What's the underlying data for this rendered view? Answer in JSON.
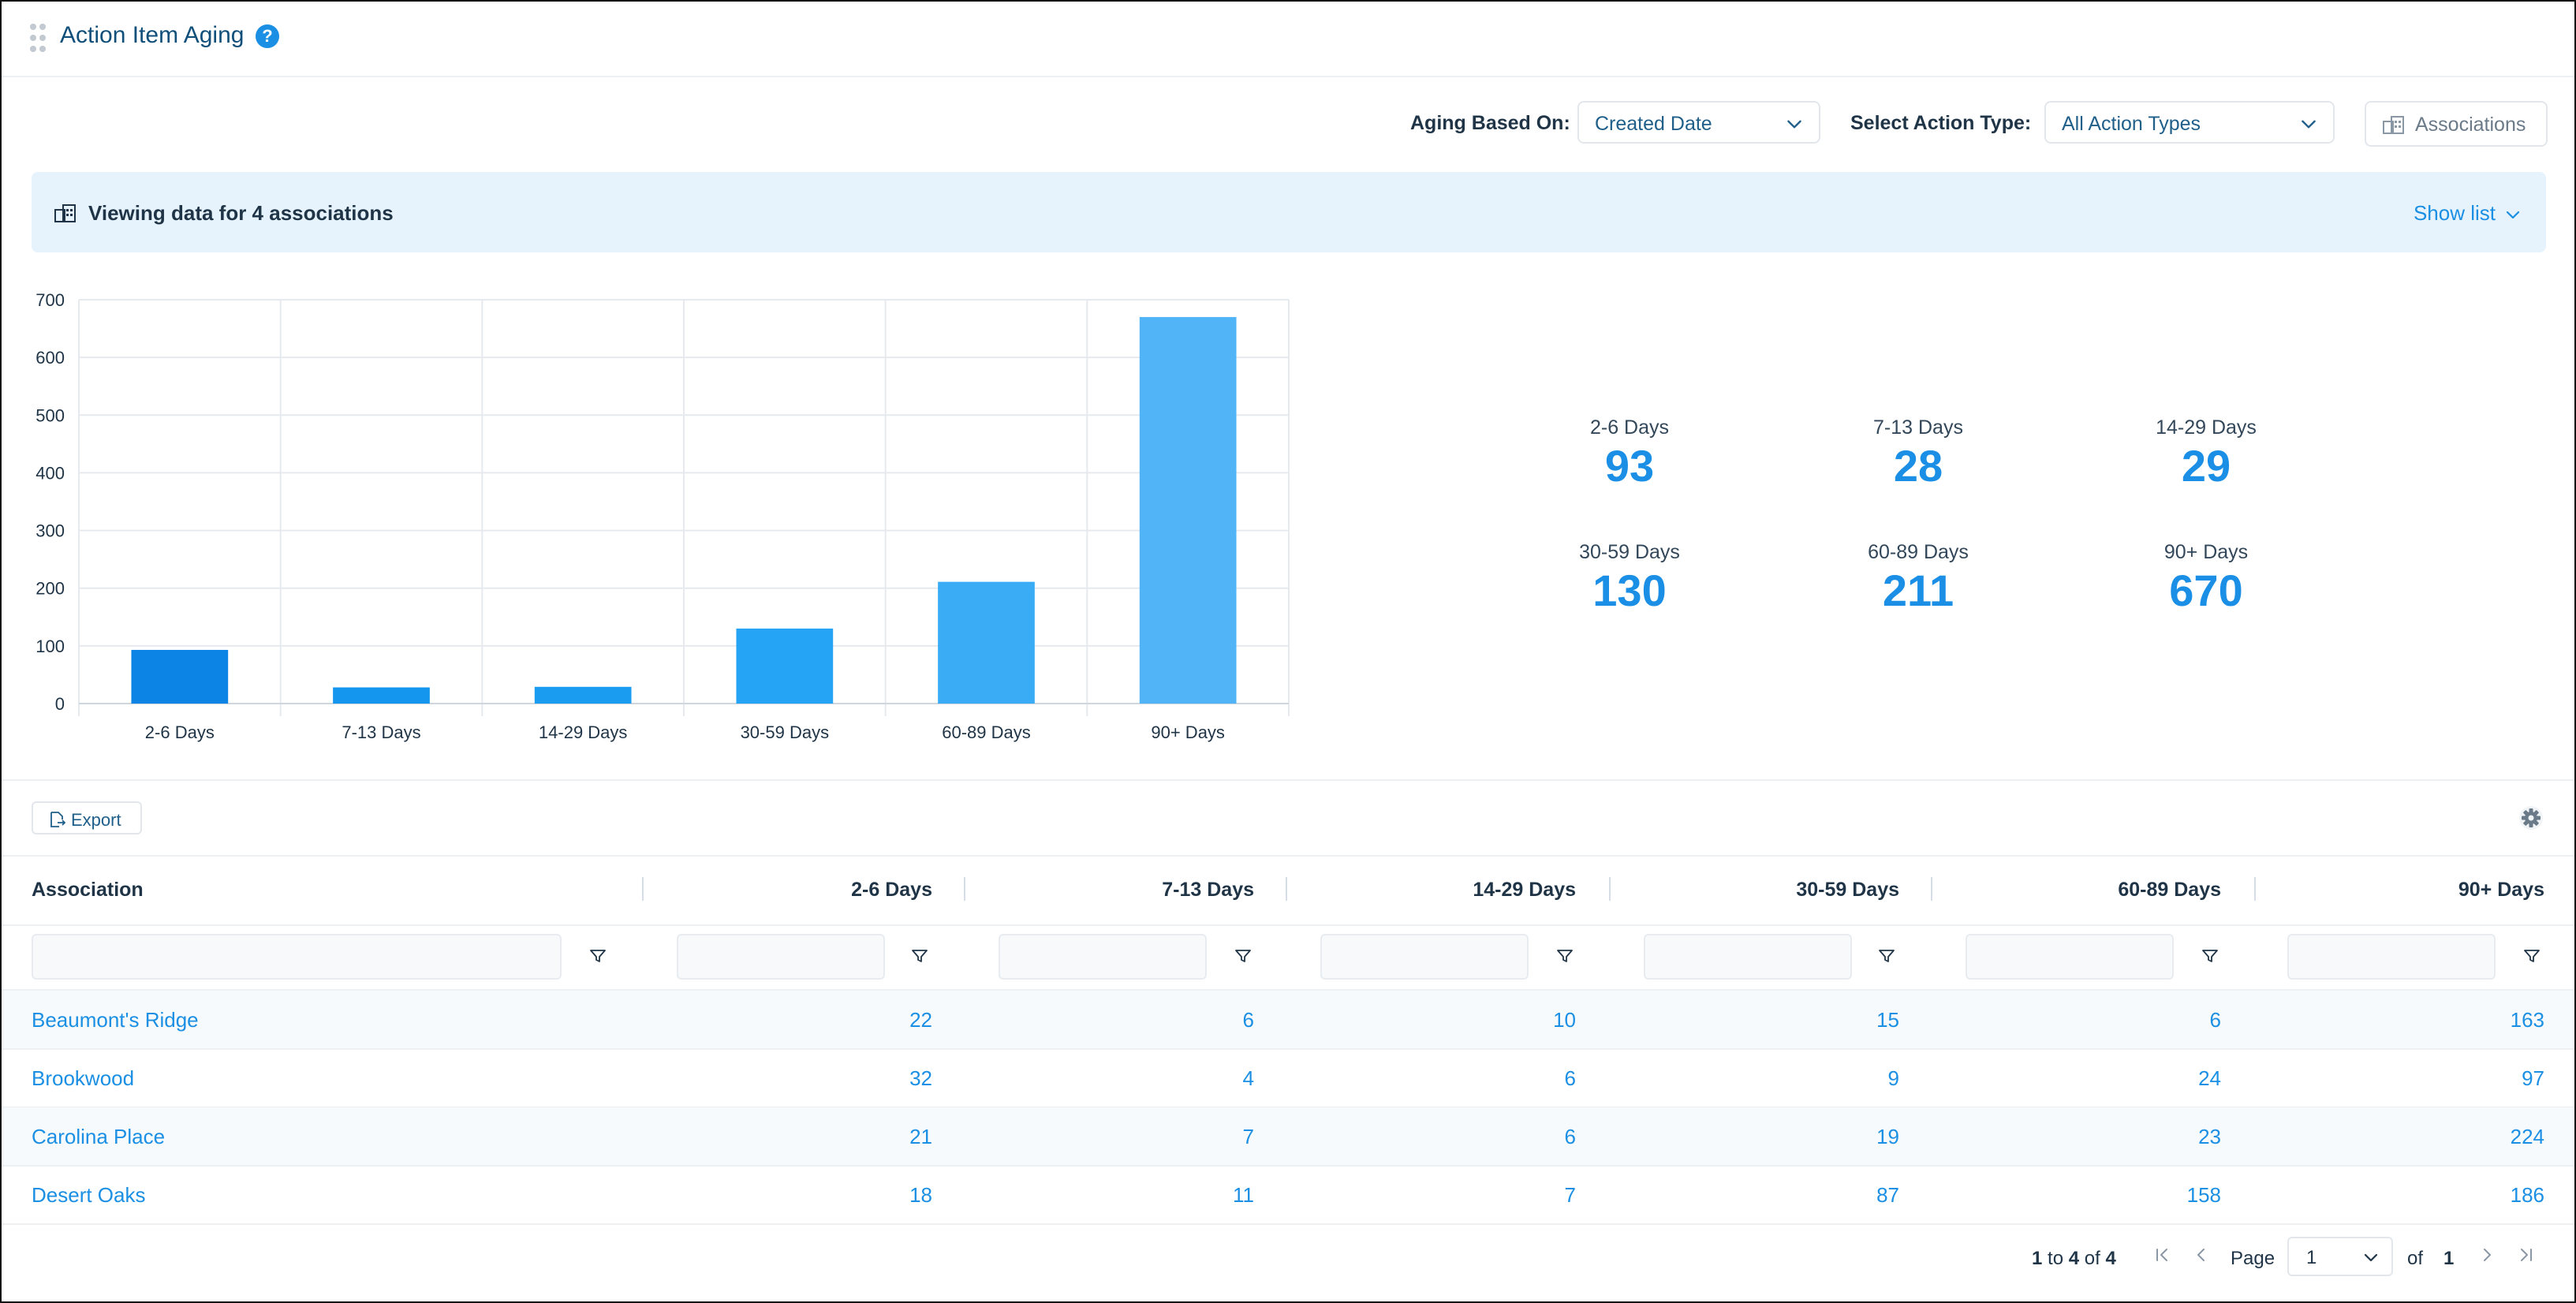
{
  "header": {
    "title": "Action Item Aging",
    "help_icon": "?"
  },
  "filters": {
    "aging_label": "Aging Based On:",
    "aging_value": "Created Date",
    "action_type_label": "Select Action Type:",
    "action_type_value": "All Action Types",
    "associations_button": "Associations"
  },
  "banner": {
    "text": "Viewing data for 4 associations",
    "show_list": "Show list"
  },
  "colors": {
    "accent": "#1a8fe3",
    "bar_colors": [
      "#0b84e6",
      "#1496ef",
      "#1a9df0",
      "#25a4f5",
      "#3aacf6",
      "#51b4f7"
    ]
  },
  "chart_data": {
    "type": "bar",
    "categories": [
      "2-6 Days",
      "7-13 Days",
      "14-29 Days",
      "30-59 Days",
      "60-89 Days",
      "90+ Days"
    ],
    "values": [
      93,
      28,
      29,
      130,
      211,
      670
    ],
    "ylim": [
      0,
      700
    ],
    "yticks": [
      0,
      100,
      200,
      300,
      400,
      500,
      600,
      700
    ],
    "title": "",
    "xlabel": "",
    "ylabel": "",
    "grid": true
  },
  "summary": [
    {
      "label": "2-6 Days",
      "value": "93"
    },
    {
      "label": "7-13 Days",
      "value": "28"
    },
    {
      "label": "14-29 Days",
      "value": "29"
    },
    {
      "label": "30-59 Days",
      "value": "130"
    },
    {
      "label": "60-89 Days",
      "value": "211"
    },
    {
      "label": "90+ Days",
      "value": "670"
    }
  ],
  "toolbar": {
    "export_label": "Export",
    "settings_icon": "gear-icon"
  },
  "table": {
    "columns": [
      "Association",
      "2-6 Days",
      "7-13 Days",
      "14-29 Days",
      "30-59 Days",
      "60-89 Days",
      "90+ Days"
    ],
    "rows": [
      [
        "Beaumont's Ridge",
        "22",
        "6",
        "10",
        "15",
        "6",
        "163"
      ],
      [
        "Brookwood",
        "32",
        "4",
        "6",
        "9",
        "24",
        "97"
      ],
      [
        "Carolina Place",
        "21",
        "7",
        "6",
        "19",
        "23",
        "224"
      ],
      [
        "Desert Oaks",
        "18",
        "11",
        "7",
        "87",
        "158",
        "186"
      ]
    ]
  },
  "pagination": {
    "from": "1",
    "to_word": "to",
    "to": "4",
    "of_word": "of",
    "total": "4",
    "page_label": "Page",
    "page_value": "1",
    "of_label": "of",
    "page_count": "1"
  }
}
